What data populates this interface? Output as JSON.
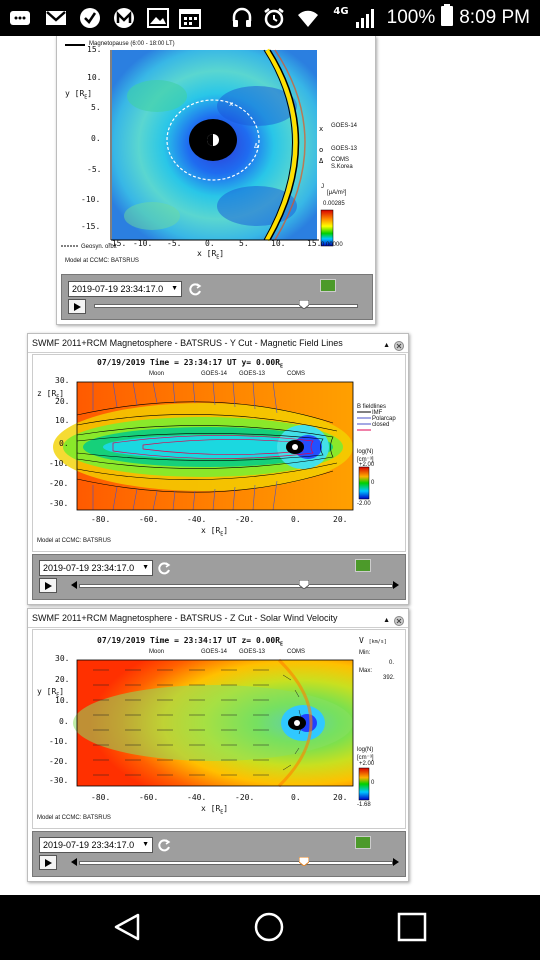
{
  "status_bar": {
    "icons": [
      "message-icon",
      "gmail-icon",
      "check-icon",
      "m-icon",
      "gallery-icon",
      "calendar-icon",
      "headset-icon",
      "alarm-icon",
      "wifi-icon",
      "signal-icon",
      "battery-icon"
    ],
    "network": "4G",
    "battery": "100%",
    "time": "8:09 PM"
  },
  "panel1": {
    "legend_top": "Magnetopause (6:00 - 18:00 LT)",
    "y_axis_label": "y [R",
    "y_axis_sub": "E",
    "y_ticks": [
      "15.",
      "10.",
      "5.",
      "0.",
      "-5.",
      "-10.",
      "-15."
    ],
    "x_ticks": [
      "-15.",
      "-10.",
      "-5.",
      "0.",
      "5.",
      "10.",
      "15."
    ],
    "x_axis_label": "x [R",
    "x_axis_sub": "E",
    "legend_goes14": "GOES-14",
    "legend_goes13": "GOES-13",
    "legend_coms": "COMS",
    "legend_skorea": "S.Korea",
    "cbar_label": "J",
    "cbar_unit": "[μA/m²]",
    "cbar_max": "0.00285",
    "cbar_min": "0.00000",
    "geosync_label": "Geosyn. orbit",
    "model_note": "Model at CCMC: BATSRUS",
    "date": "2019-07-19 23:34:17.0",
    "slider_pos": 0.8
  },
  "panel2": {
    "title": "SWMF 2011+RCM Magnetosphere - BATSRUS - Y Cut - Magnetic Field Lines",
    "plot_title": "07/19/2019 Time = 23:34:17 UT y= 0.00R",
    "legend": [
      "Moon",
      "GOES-14",
      "GOES-13",
      "COMS"
    ],
    "z_label": "z [R",
    "z_ticks": [
      "30.",
      "20.",
      "10.",
      "0.",
      "-10.",
      "-20.",
      "-30."
    ],
    "x_ticks": [
      "-80.",
      "-60.",
      "-40.",
      "-20.",
      "0.",
      "20."
    ],
    "x_label": "x [R",
    "bfield_title": "B fieldlines",
    "bfield_items": [
      "IMF",
      "Polarcap",
      "closed"
    ],
    "cbar_label": "log(N)",
    "cbar_unit": "[cm⁻³]",
    "cbar_max": "+2.00",
    "cbar_mid": "0",
    "cbar_min": "-2.00",
    "model_note": "Model at CCMC: BATSRUS",
    "date": "2019-07-19 23:34:17.0",
    "slider_pos": 0.72
  },
  "panel3": {
    "title": "SWMF 2011+RCM Magnetosphere - BATSRUS - Z Cut - Solar Wind Velocity",
    "plot_title": "07/19/2019 Time = 23:34:17 UT z= 0.00R",
    "legend": [
      "Moon",
      "GOES-14",
      "GOES-13",
      "COMS"
    ],
    "y_label": "y [R",
    "y_ticks": [
      "30.",
      "20.",
      "10.",
      "0.",
      "-10.",
      "-20.",
      "-30."
    ],
    "x_ticks": [
      "-80.",
      "-60.",
      "-40.",
      "-20.",
      "0.",
      "20."
    ],
    "x_label": "x [R",
    "v_label": "V",
    "v_unit": "[km/s]",
    "min_label": "Min:",
    "min_val": "0.",
    "max_label": "Max:",
    "max_val": "392.",
    "cbar_label": "log(N)",
    "cbar_unit": "[cm⁻³]",
    "cbar_max": "+2.00",
    "cbar_mid": "0",
    "cbar_min": "-1.68",
    "model_note": "Model at CCMC: BATSRUS",
    "date": "2019-07-19 23:34:17.0",
    "slider_pos": 0.72
  }
}
